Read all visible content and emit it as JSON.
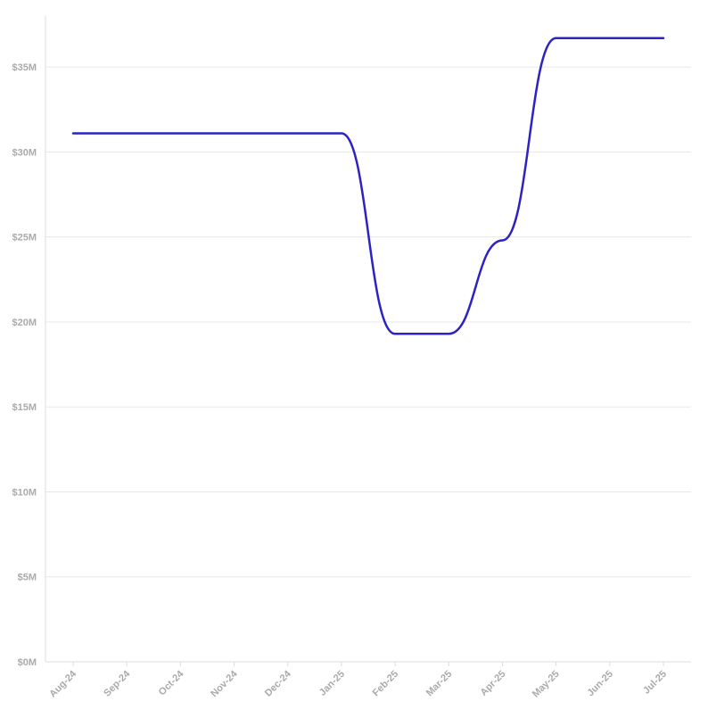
{
  "chart_data": {
    "type": "line",
    "title": "",
    "xlabel": "",
    "ylabel": "",
    "x": [
      "Aug-24",
      "Sep-24",
      "Oct-24",
      "Nov-24",
      "Dec-24",
      "Jan-25",
      "Feb-25",
      "Mar-25",
      "Apr-25",
      "May-25",
      "Jun-25",
      "Jul-25"
    ],
    "series": [
      {
        "values": [
          31100000,
          31100000,
          31100000,
          31100000,
          31100000,
          31100000,
          19300000,
          19300000,
          24800000,
          36700000,
          36700000,
          36700000
        ],
        "color": "#2d22c4"
      }
    ],
    "y_ticks": [
      0,
      5000000,
      10000000,
      15000000,
      20000000,
      25000000,
      30000000,
      35000000
    ],
    "y_tick_labels": [
      "$0M",
      "$5M",
      "$10M",
      "$15M",
      "$20M",
      "$25M",
      "$30M",
      "$35M"
    ],
    "ylim": [
      0,
      38000000
    ],
    "grid": true,
    "legend": "none",
    "colors": {
      "grid": "#e8e8e8",
      "axis": "#dddddd",
      "tick_text": "#aaaaaa"
    }
  }
}
